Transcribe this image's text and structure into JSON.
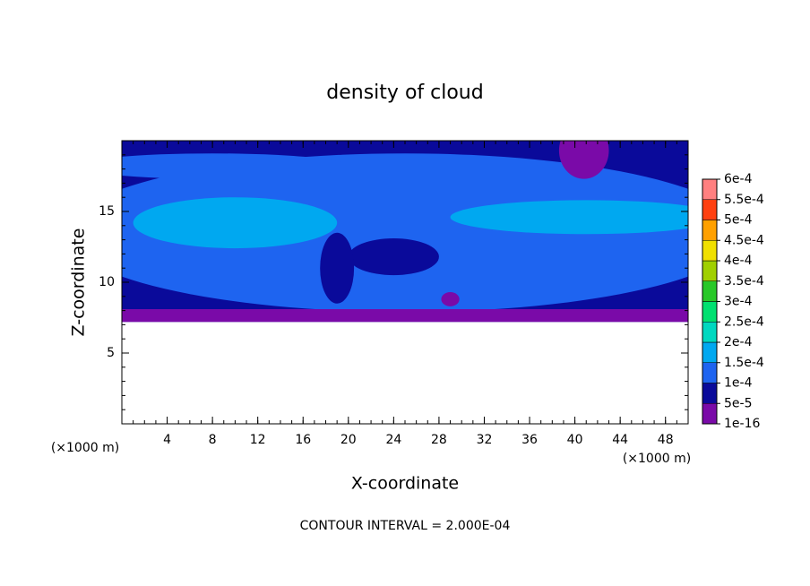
{
  "chart_data": {
    "type": "contour",
    "title": "density of cloud",
    "x_label": "X-coordinate",
    "y_label": "Z-coordinate",
    "x_unit": "(×1000 m)",
    "note": "CONTOUR INTERVAL = 2.000E-04",
    "xlim": [
      0,
      50
    ],
    "ylim": [
      0,
      20
    ],
    "xticks": [
      4,
      8,
      12,
      16,
      20,
      24,
      28,
      32,
      36,
      40,
      44,
      48
    ],
    "yticks": [
      5,
      10,
      15
    ],
    "colorbar": {
      "ticks": [
        {
          "value": 1e-16,
          "label": "1e-16"
        },
        {
          "value": 5e-05,
          "label": "5e-5"
        },
        {
          "value": 0.0001,
          "label": "1e-4"
        },
        {
          "value": 0.00015,
          "label": "1.5e-4"
        },
        {
          "value": 0.0002,
          "label": "2e-4"
        },
        {
          "value": 0.00025,
          "label": "2.5e-4"
        },
        {
          "value": 0.0003,
          "label": "3e-4"
        },
        {
          "value": 0.00035,
          "label": "3.5e-4"
        },
        {
          "value": 0.0004,
          "label": "4e-4"
        },
        {
          "value": 0.00045,
          "label": "4.5e-4"
        },
        {
          "value": 0.0005,
          "label": "5e-4"
        },
        {
          "value": 0.00055,
          "label": "5.5e-4"
        },
        {
          "value": 0.0006,
          "label": "6e-4"
        }
      ],
      "colors": [
        "#7a0aa8",
        "#0a0a9a",
        "#1e64f0",
        "#00a8f0",
        "#00d8c0",
        "#00e070",
        "#28c828",
        "#a0d000",
        "#f0e000",
        "#ffa000",
        "#ff4010",
        "#ff8080"
      ]
    }
  }
}
